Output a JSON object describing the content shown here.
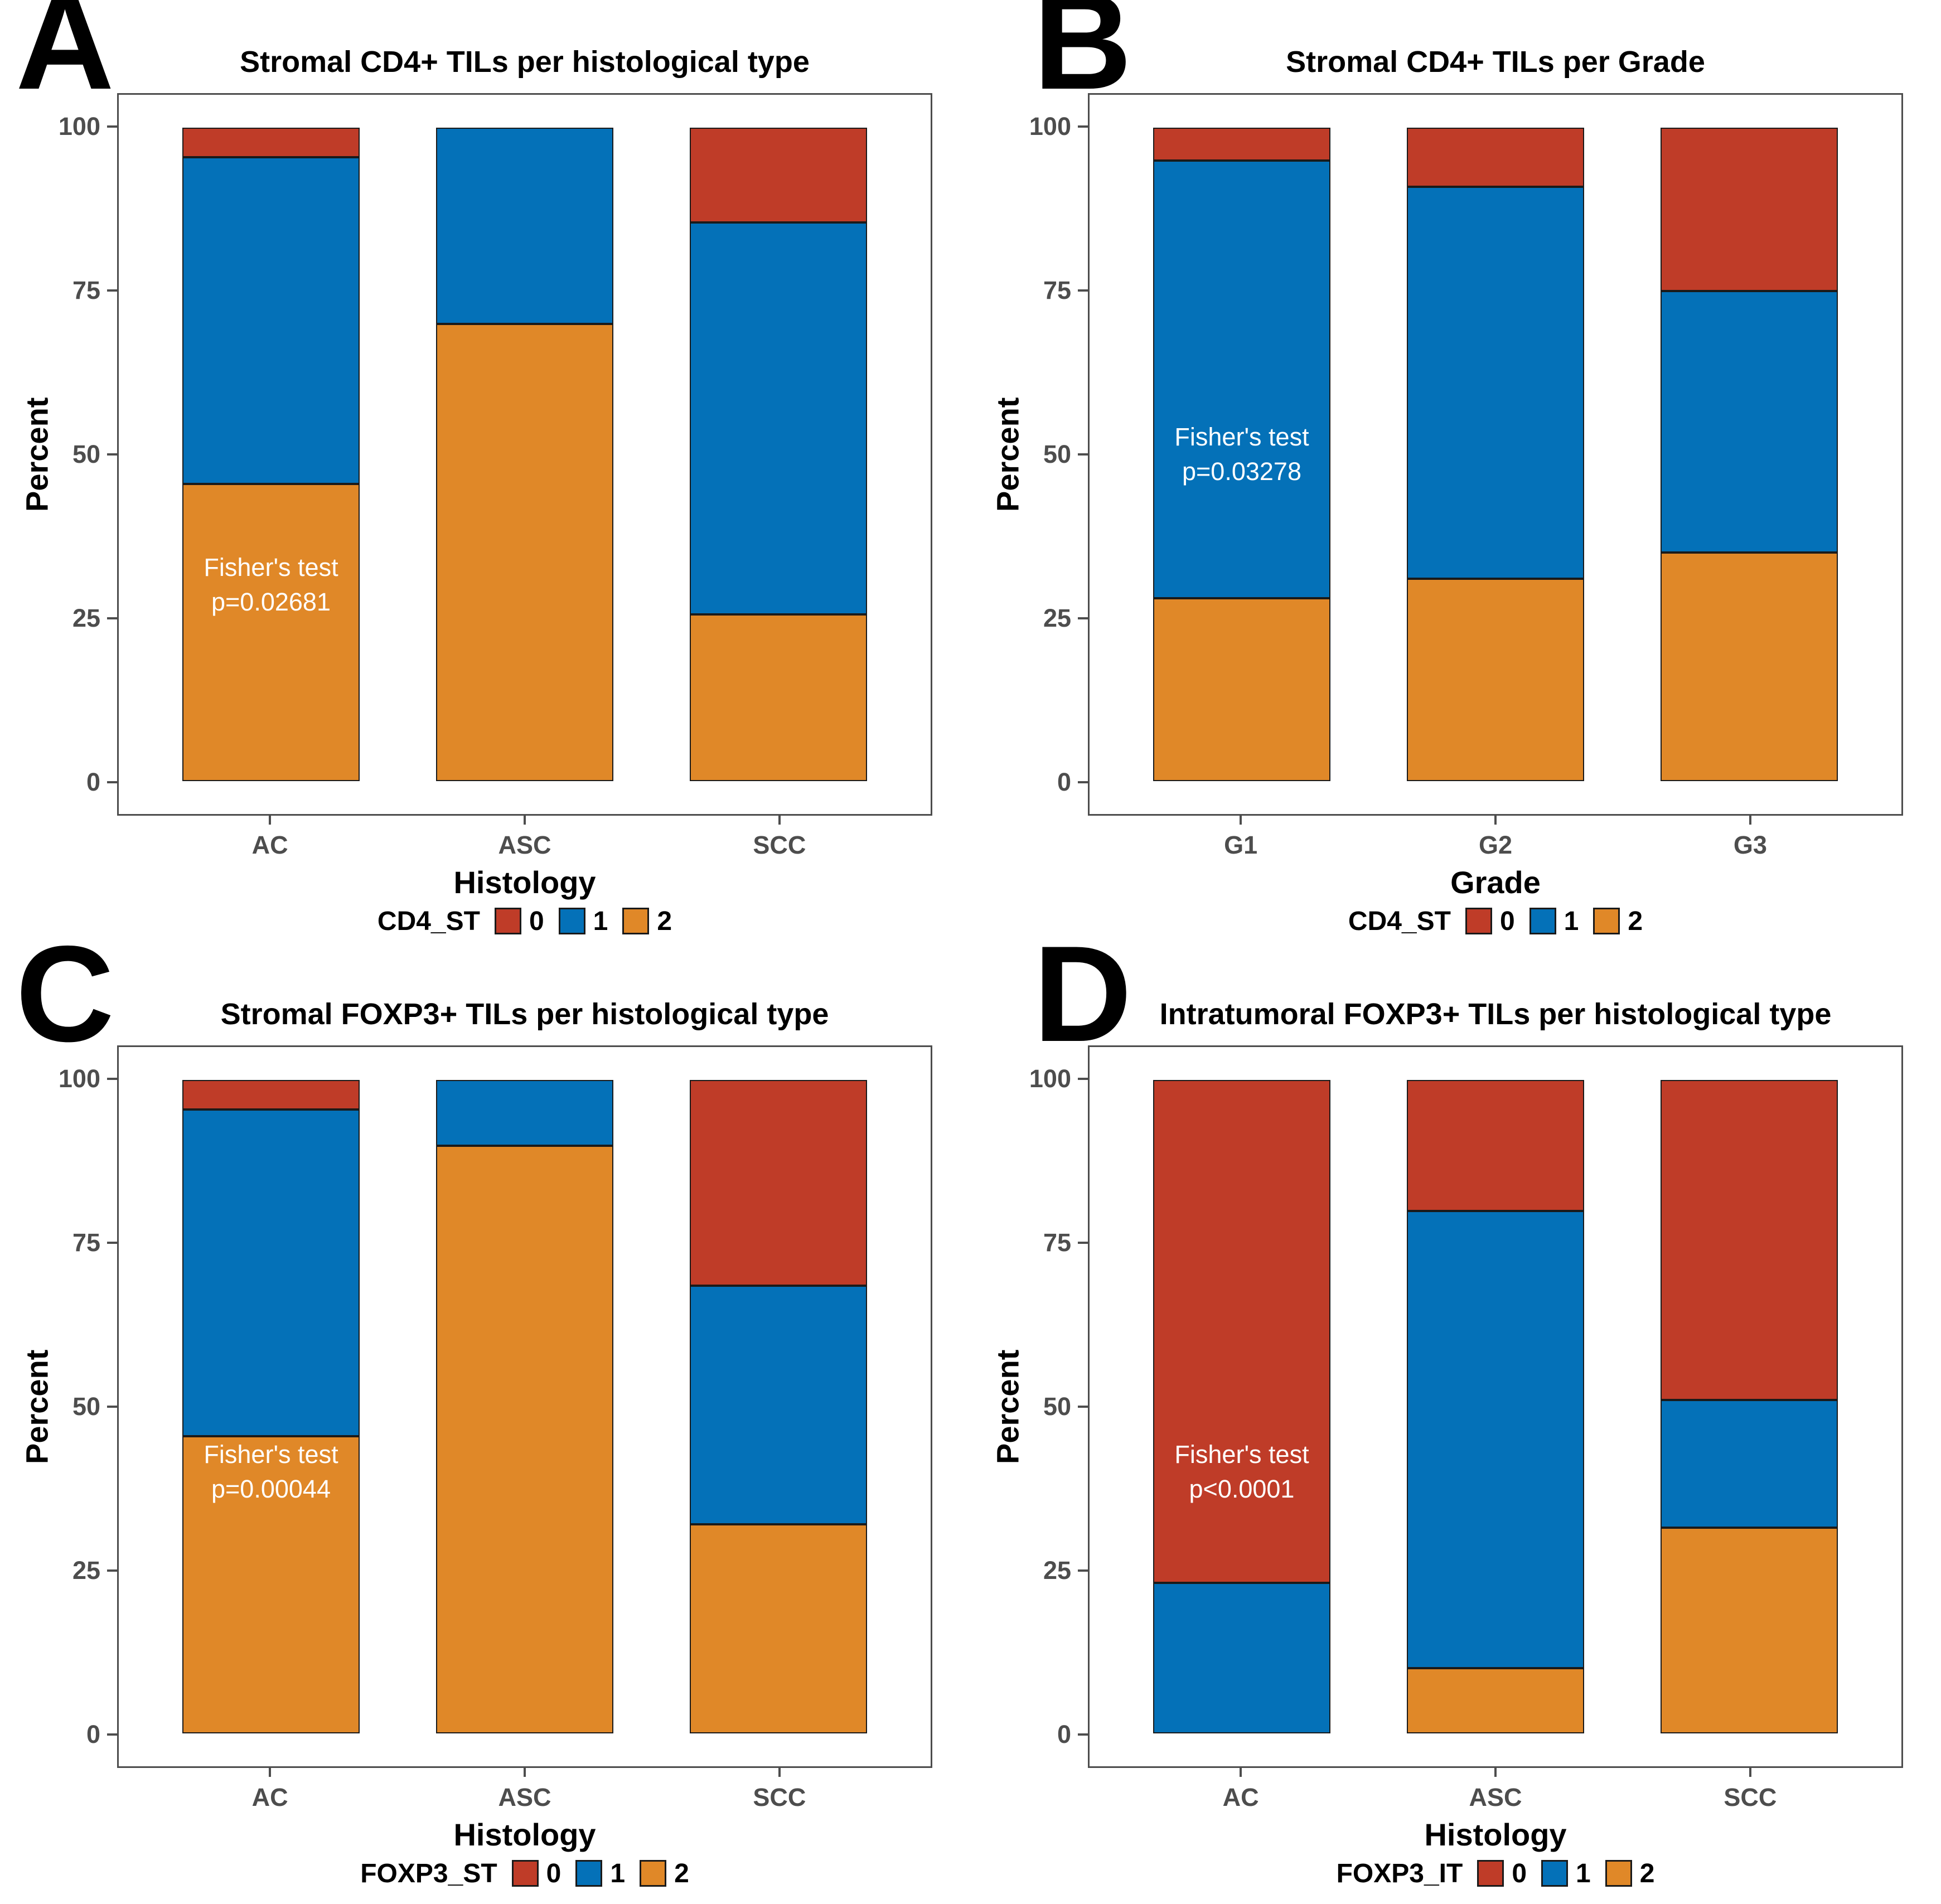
{
  "figure": {
    "background": "#ffffff"
  },
  "palette": {
    "score_0": "#BF3C28",
    "score_1": "#0471B8",
    "score_2": "#E08828",
    "segment_border": "#1a1a1a",
    "axis_gray": "#4d4d4d",
    "title_text": "#000000",
    "annotation_text": "#ffffff"
  },
  "chart_data": [
    {
      "panel_label": "A",
      "type": "bar",
      "stacked": true,
      "title": "Stromal CD4+ TILs per histological type",
      "xlabel": "Histology",
      "ylabel": "Percent",
      "ylim": [
        0,
        100
      ],
      "yticks": [
        0,
        25,
        50,
        75,
        100
      ],
      "grid": "off",
      "legend_position": "bottom",
      "legend_title": "CD4_ST",
      "categories": [
        "AC",
        "ASC",
        "SCC"
      ],
      "stack_order": [
        "2",
        "1",
        "0"
      ],
      "series": [
        {
          "name": "0",
          "color": "#BF3C28",
          "values": [
            4.5,
            0,
            14.5
          ]
        },
        {
          "name": "1",
          "color": "#0471B8",
          "values": [
            50,
            30,
            60
          ]
        },
        {
          "name": "2",
          "color": "#E08828",
          "values": [
            45.5,
            70,
            25.5
          ]
        }
      ],
      "annotation": {
        "lines": [
          "Fisher's test",
          "p=0.02681"
        ],
        "bar_index": 0,
        "y_center_pct": 30
      }
    },
    {
      "panel_label": "B",
      "type": "bar",
      "stacked": true,
      "title": "Stromal CD4+ TILs per Grade",
      "xlabel": "Grade",
      "ylabel": "Percent",
      "ylim": [
        0,
        100
      ],
      "yticks": [
        0,
        25,
        50,
        75,
        100
      ],
      "grid": "off",
      "legend_position": "bottom",
      "legend_title": "CD4_ST",
      "categories": [
        "G1",
        "G2",
        "G3"
      ],
      "stack_order": [
        "2",
        "1",
        "0"
      ],
      "series": [
        {
          "name": "0",
          "color": "#BF3C28",
          "values": [
            5,
            9,
            25
          ]
        },
        {
          "name": "1",
          "color": "#0471B8",
          "values": [
            67,
            60,
            40
          ]
        },
        {
          "name": "2",
          "color": "#E08828",
          "values": [
            28,
            31,
            35
          ]
        }
      ],
      "annotation": {
        "lines": [
          "Fisher's test",
          "p=0.03278"
        ],
        "bar_index": 0,
        "y_center_pct": 50
      }
    },
    {
      "panel_label": "C",
      "type": "bar",
      "stacked": true,
      "title": "Stromal FOXP3+ TILs per histological type",
      "xlabel": "Histology",
      "ylabel": "Percent",
      "ylim": [
        0,
        100
      ],
      "yticks": [
        0,
        25,
        50,
        75,
        100
      ],
      "grid": "off",
      "legend_position": "bottom",
      "legend_title": "FOXP3_ST",
      "categories": [
        "AC",
        "ASC",
        "SCC"
      ],
      "stack_order": [
        "2",
        "1",
        "0"
      ],
      "series": [
        {
          "name": "0",
          "color": "#BF3C28",
          "values": [
            4.5,
            0,
            31.5
          ]
        },
        {
          "name": "1",
          "color": "#0471B8",
          "values": [
            50,
            10,
            36.5
          ]
        },
        {
          "name": "2",
          "color": "#E08828",
          "values": [
            45.5,
            90,
            32
          ]
        }
      ],
      "annotation": {
        "lines": [
          "Fisher's test",
          "p=0.00044"
        ],
        "bar_index": 0,
        "y_center_pct": 40
      }
    },
    {
      "panel_label": "D",
      "type": "bar",
      "stacked": true,
      "title": "Intratumoral FOXP3+ TILs per histological type",
      "xlabel": "Histology",
      "ylabel": "Percent",
      "ylim": [
        0,
        100
      ],
      "yticks": [
        0,
        25,
        50,
        75,
        100
      ],
      "grid": "off",
      "legend_position": "bottom",
      "legend_title": "FOXP3_IT",
      "categories": [
        "AC",
        "ASC",
        "SCC"
      ],
      "stack_order": [
        "2",
        "1",
        "0"
      ],
      "series": [
        {
          "name": "0",
          "color": "#BF3C28",
          "values": [
            77,
            20,
            49
          ]
        },
        {
          "name": "1",
          "color": "#0471B8",
          "values": [
            23,
            70,
            19.5
          ]
        },
        {
          "name": "2",
          "color": "#E08828",
          "values": [
            0,
            10,
            31.5
          ]
        }
      ],
      "annotation": {
        "lines": [
          "Fisher's test",
          "p<0.0001"
        ],
        "bar_index": 0,
        "y_center_pct": 40
      }
    }
  ]
}
